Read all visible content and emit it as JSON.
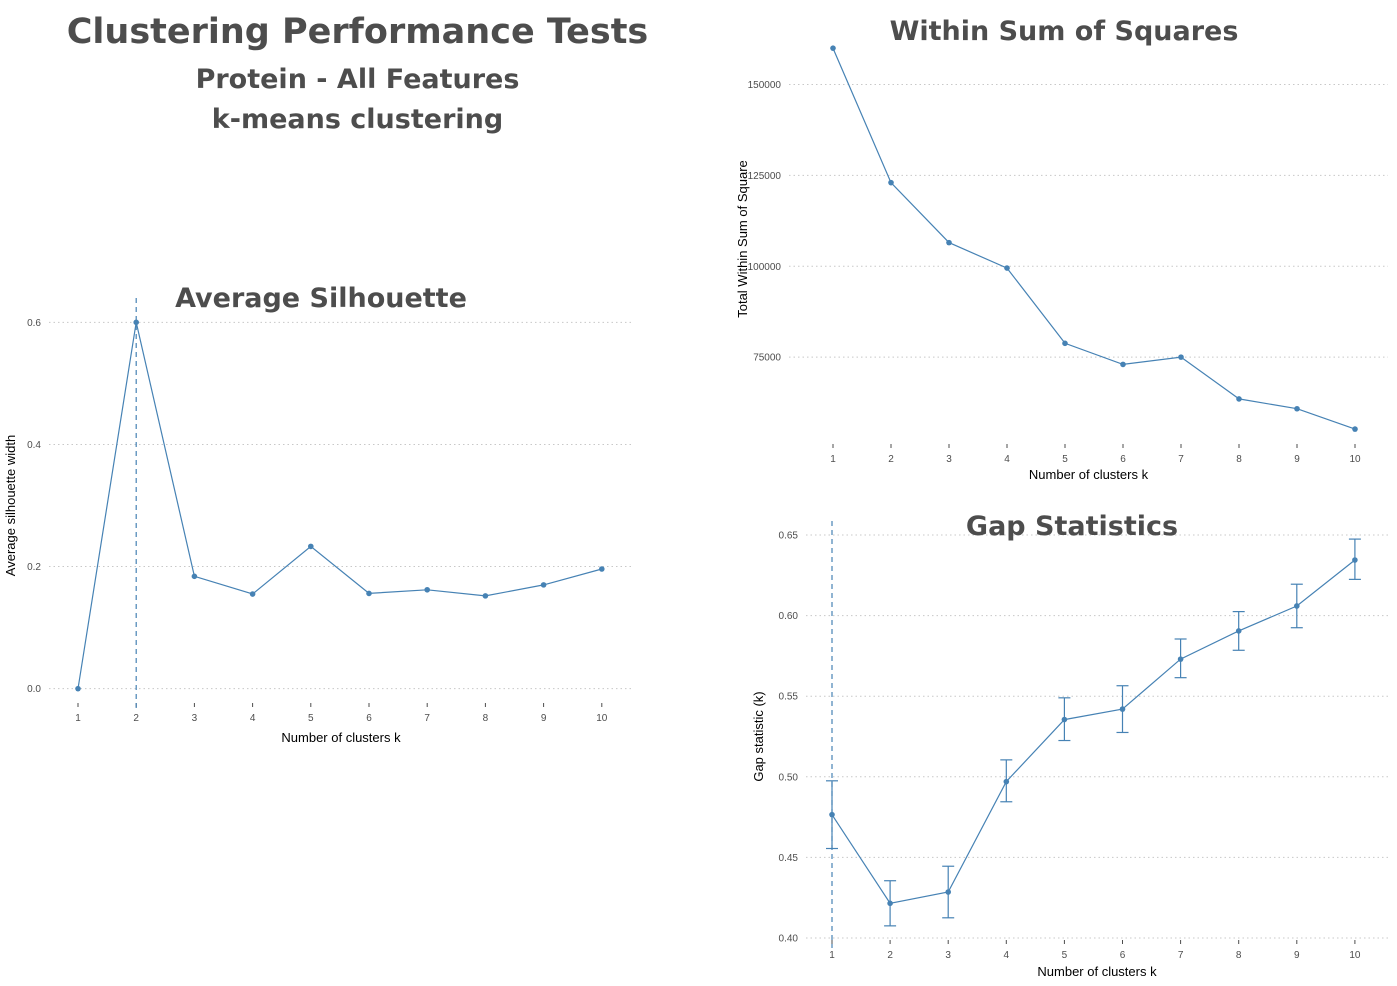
{
  "page": {
    "title": "Clustering Performance Tests",
    "subtitle": "Protein - All Features",
    "subtitle2": "k-means clustering"
  },
  "colors": {
    "line": "#4682b4",
    "title": "#4d4d4d",
    "grid": "#c8c8c8"
  },
  "chart_data": [
    {
      "id": "silhouette",
      "type": "line",
      "title": "Average Silhouette",
      "xlabel": "Number of clusters k",
      "ylabel": "Average silhouette width",
      "x": [
        1,
        2,
        3,
        4,
        5,
        6,
        7,
        8,
        9,
        10
      ],
      "values": [
        0.0,
        0.6,
        0.184,
        0.155,
        0.233,
        0.156,
        0.162,
        0.152,
        0.17,
        0.196
      ],
      "yticks": [
        0.0,
        0.2,
        0.4,
        0.6
      ],
      "ytick_labels": [
        "0.0",
        "0.2",
        "0.4",
        "0.6"
      ],
      "ylim": [
        -0.03,
        0.63
      ],
      "vline_x": 2,
      "grid": true
    },
    {
      "id": "wss",
      "type": "line",
      "title": "Within Sum of Squares",
      "xlabel": "Number of clusters k",
      "ylabel": "Total Within Sum of Square",
      "x": [
        1,
        2,
        3,
        4,
        5,
        6,
        7,
        8,
        9,
        10
      ],
      "values": [
        160000,
        123000,
        106500,
        99500,
        78800,
        73000,
        75000,
        63500,
        60800,
        55200
      ],
      "yticks": [
        75000,
        100000,
        125000,
        150000
      ],
      "ytick_labels": [
        "75000",
        "100000",
        "125000",
        "150000"
      ],
      "ylim": [
        50000,
        165000
      ],
      "grid": true
    },
    {
      "id": "gap",
      "type": "line",
      "title": "Gap Statistics",
      "xlabel": "Number of clusters k",
      "ylabel": "Gap statistic (k)",
      "x": [
        1,
        2,
        3,
        4,
        5,
        6,
        7,
        8,
        9,
        10
      ],
      "values": [
        0.4765,
        0.4215,
        0.4285,
        0.497,
        0.5355,
        0.542,
        0.573,
        0.5905,
        0.606,
        0.6345
      ],
      "error_low": [
        0.4555,
        0.4075,
        0.4125,
        0.4845,
        0.5225,
        0.5275,
        0.5615,
        0.5785,
        0.5925,
        0.6225
      ],
      "error_high": [
        0.4975,
        0.4355,
        0.4445,
        0.5105,
        0.549,
        0.5565,
        0.5855,
        0.6025,
        0.6195,
        0.6475
      ],
      "yticks": [
        0.4,
        0.45,
        0.5,
        0.55,
        0.6,
        0.65
      ],
      "ytick_labels": [
        "0.40",
        "0.45",
        "0.50",
        "0.55",
        "0.60",
        "0.65"
      ],
      "ylim": [
        0.395,
        0.655
      ],
      "vline_x": 1,
      "grid": true
    }
  ]
}
